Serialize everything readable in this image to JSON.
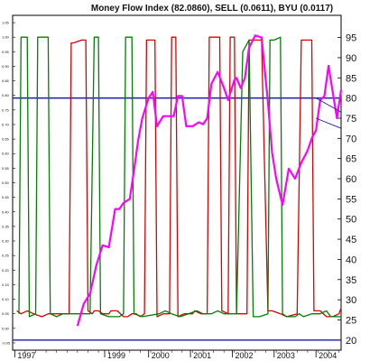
{
  "chart_data": {
    "type": "line",
    "title": "Money Flow Index (82.0860), SELL (0.0611), BYU (0.0117)",
    "x_tick_labels": [
      "1997",
      "1999",
      "2000",
      "2001",
      "2002",
      "2003",
      "2004"
    ],
    "x_ticks": [
      1996.75,
      1998.9,
      1999.95,
      2000.95,
      2001.95,
      2002.95,
      2003.95
    ],
    "xlim": [
      1996.7,
      2004.55
    ],
    "left_axis": {
      "ylim": [
        -0.075,
        1.075
      ],
      "tick_labels": [
        "-0.05",
        "0.00",
        "0.05",
        "0.10",
        "0.15",
        "0.20",
        "0.25",
        "0.30",
        "0.35",
        "0.40",
        "0.45",
        "0.50",
        "0.55",
        "0.60",
        "0.65",
        "0.70",
        "0.75",
        "0.80",
        "0.85",
        "0.90",
        "0.95",
        "1.00",
        "1.05"
      ],
      "ticks": [
        -0.05,
        0,
        0.05,
        0.1,
        0.15,
        0.2,
        0.25,
        0.3,
        0.35,
        0.4,
        0.45,
        0.5,
        0.55,
        0.6,
        0.65,
        0.7,
        0.75,
        0.8,
        0.85,
        0.9,
        0.95,
        1.0,
        1.05
      ]
    },
    "right_axis": {
      "ylim": [
        17.5,
        100.5
      ],
      "tick_labels": [
        "20",
        "25",
        "30",
        "35",
        "40",
        "45",
        "50",
        "55",
        "60",
        "65",
        "70",
        "75",
        "80",
        "85",
        "90",
        "95"
      ],
      "ticks": [
        20,
        25,
        30,
        35,
        40,
        45,
        50,
        55,
        60,
        65,
        70,
        75,
        80,
        85,
        90,
        95
      ]
    },
    "reference_lines": [
      {
        "axis": "right",
        "value": 80,
        "color": "#1a1ab0"
      },
      {
        "axis": "right",
        "value": 20,
        "color": "#1a1ab0"
      }
    ],
    "series": [
      {
        "axis": "right",
        "color": "#ff00ff",
        "points": [
          [
            1998.25,
            23.5
          ],
          [
            1998.4,
            29
          ],
          [
            1998.55,
            31.5
          ],
          [
            1998.7,
            38.5
          ],
          [
            1998.85,
            43.5
          ],
          [
            1999.0,
            43
          ],
          [
            1999.15,
            52.5
          ],
          [
            1999.25,
            52.5
          ],
          [
            1999.35,
            54
          ],
          [
            1999.5,
            55
          ],
          [
            1999.6,
            62
          ],
          [
            1999.7,
            69.5
          ],
          [
            1999.8,
            75
          ],
          [
            1999.95,
            80
          ],
          [
            2000.05,
            81.5
          ],
          [
            2000.15,
            73
          ],
          [
            2000.3,
            75.5
          ],
          [
            2000.45,
            75.5
          ],
          [
            2000.55,
            75.5
          ],
          [
            2000.65,
            80.5
          ],
          [
            2000.75,
            80.5
          ],
          [
            2000.85,
            73
          ],
          [
            2001.0,
            73
          ],
          [
            2001.15,
            74
          ],
          [
            2001.25,
            73.5
          ],
          [
            2001.35,
            75
          ],
          [
            2001.45,
            83.5
          ],
          [
            2001.6,
            86.5
          ],
          [
            2001.75,
            82.5
          ],
          [
            2001.85,
            79.5
          ],
          [
            2002.0,
            84.5
          ],
          [
            2002.05,
            85
          ],
          [
            2002.15,
            82.5
          ],
          [
            2002.25,
            85
          ],
          [
            2002.35,
            92.5
          ],
          [
            2002.5,
            95.5
          ],
          [
            2002.65,
            95
          ],
          [
            2002.8,
            79
          ],
          [
            2002.9,
            66.5
          ],
          [
            2003.0,
            60
          ],
          [
            2003.15,
            53.5
          ],
          [
            2003.3,
            62.5
          ],
          [
            2003.45,
            60
          ],
          [
            2003.6,
            64
          ],
          [
            2003.75,
            67
          ],
          [
            2003.85,
            70
          ],
          [
            2003.95,
            72
          ],
          [
            2004.05,
            79.5
          ],
          [
            2004.15,
            80.5
          ],
          [
            2004.25,
            88
          ],
          [
            2004.35,
            81.5
          ],
          [
            2004.45,
            75
          ],
          [
            2004.55,
            82
          ]
        ]
      },
      {
        "axis": "left",
        "color": "#dd0000",
        "points": [
          [
            1996.8,
            0.06
          ],
          [
            1996.9,
            0.05
          ],
          [
            1997.05,
            0.06
          ],
          [
            1997.2,
            0.05
          ],
          [
            1997.4,
            0.04
          ],
          [
            1997.55,
            0.05
          ],
          [
            1997.75,
            0.05
          ],
          [
            1997.9,
            0.05
          ],
          [
            1998.05,
            0.05
          ],
          [
            1998.1,
            0.98
          ],
          [
            1998.15,
            0.98
          ],
          [
            1998.35,
            0.99
          ],
          [
            1998.45,
            0.99
          ],
          [
            1998.5,
            0.06
          ],
          [
            1998.6,
            0.05
          ],
          [
            1998.65,
            0.06
          ],
          [
            1998.75,
            0.06
          ],
          [
            1998.85,
            0.05
          ],
          [
            1999.0,
            0.05
          ],
          [
            1999.05,
            0.06
          ],
          [
            1999.2,
            0.06
          ],
          [
            1999.35,
            0.04
          ],
          [
            1999.45,
            0.04
          ],
          [
            1999.55,
            0.05
          ],
          [
            1999.65,
            0.05
          ],
          [
            1999.75,
            0.04
          ],
          [
            1999.85,
            0.05
          ],
          [
            1999.9,
            0.99
          ],
          [
            1999.95,
            0.99
          ],
          [
            2000.1,
            0.99
          ],
          [
            2000.15,
            0.04
          ],
          [
            2000.3,
            0.05
          ],
          [
            2000.45,
            0.05
          ],
          [
            2000.5,
            1.0
          ],
          [
            2000.6,
            1.0
          ],
          [
            2000.65,
            0.04
          ],
          [
            2000.8,
            0.05
          ],
          [
            2001.0,
            0.05
          ],
          [
            2001.05,
            0.06
          ],
          [
            2001.2,
            0.05
          ],
          [
            2001.35,
            0.05
          ],
          [
            2001.4,
            1.0
          ],
          [
            2001.55,
            1.0
          ],
          [
            2001.65,
            1.0
          ],
          [
            2001.7,
            0.06
          ],
          [
            2001.85,
            0.05
          ],
          [
            2001.9,
            1.0
          ],
          [
            2002.0,
            1.0
          ],
          [
            2002.05,
            0.05
          ],
          [
            2002.15,
            0.05
          ],
          [
            2002.3,
            0.05
          ],
          [
            2002.35,
            0.99
          ],
          [
            2002.5,
            0.99
          ],
          [
            2002.65,
            0.99
          ],
          [
            2002.8,
            0.06
          ],
          [
            2002.9,
            0.06
          ],
          [
            2003.1,
            0.05
          ],
          [
            2003.25,
            0.04
          ],
          [
            2003.5,
            0.05
          ],
          [
            2003.6,
            0.99
          ],
          [
            2003.75,
            0.99
          ],
          [
            2003.85,
            0.99
          ],
          [
            2003.9,
            0.06
          ],
          [
            2004.05,
            0.06
          ],
          [
            2004.2,
            0.04
          ],
          [
            2004.35,
            0.04
          ],
          [
            2004.5,
            0.05
          ],
          [
            2004.55,
            0.07
          ]
        ]
      },
      {
        "axis": "left",
        "color": "#008000",
        "points": [
          [
            1996.85,
            0.05
          ],
          [
            1996.9,
            1.0
          ],
          [
            1997.05,
            1.0
          ],
          [
            1997.1,
            0.04
          ],
          [
            1997.25,
            0.05
          ],
          [
            1997.3,
            1.0
          ],
          [
            1997.45,
            1.0
          ],
          [
            1997.55,
            1.0
          ],
          [
            1997.6,
            0.05
          ],
          [
            1997.75,
            0.04
          ],
          [
            1997.9,
            0.05
          ],
          [
            1998.05,
            0.05
          ],
          [
            1998.5,
            0.05
          ],
          [
            1998.55,
            0.05
          ],
          [
            1998.65,
            1.0
          ],
          [
            1998.75,
            1.0
          ],
          [
            1998.8,
            0.05
          ],
          [
            1999.0,
            0.04
          ],
          [
            1999.25,
            0.04
          ],
          [
            1999.35,
            0.05
          ],
          [
            1999.4,
            1.0
          ],
          [
            1999.55,
            1.0
          ],
          [
            1999.6,
            0.05
          ],
          [
            1999.8,
            0.04
          ],
          [
            2000.2,
            0.05
          ],
          [
            2000.35,
            0.06
          ],
          [
            2000.5,
            0.05
          ],
          [
            2000.7,
            0.04
          ],
          [
            2000.9,
            0.05
          ],
          [
            2001.1,
            0.06
          ],
          [
            2001.25,
            0.05
          ],
          [
            2001.45,
            0.05
          ],
          [
            2001.6,
            0.06
          ],
          [
            2001.75,
            0.05
          ],
          [
            2001.85,
            0.05
          ],
          [
            2002.05,
            0.05
          ],
          [
            2002.2,
            0.95
          ],
          [
            2002.35,
            0.99
          ],
          [
            2002.45,
            0.04
          ],
          [
            2002.6,
            0.04
          ],
          [
            2002.8,
            0.05
          ],
          [
            2002.85,
            0.99
          ],
          [
            2002.95,
            0.99
          ],
          [
            2003.1,
            1.0
          ],
          [
            2003.15,
            0.05
          ],
          [
            2003.25,
            0.04
          ],
          [
            2003.45,
            0.04
          ],
          [
            2003.55,
            0.05
          ],
          [
            2003.65,
            0.04
          ],
          [
            2003.85,
            0.05
          ],
          [
            2003.9,
            0.05
          ],
          [
            2004.05,
            0.05
          ],
          [
            2004.2,
            0.06
          ],
          [
            2004.3,
            0.04
          ],
          [
            2004.45,
            0.04
          ],
          [
            2004.55,
            0.04
          ]
        ]
      }
    ],
    "trendlines": [
      {
        "axis": "right",
        "from": [
          2003.95,
          80
        ],
        "to": [
          2004.55,
          76.5
        ],
        "color": "#1a1ab0"
      },
      {
        "axis": "right",
        "from": [
          2003.95,
          75
        ],
        "to": [
          2004.55,
          72.5
        ],
        "color": "#1a1ab0"
      }
    ],
    "grid": false
  }
}
